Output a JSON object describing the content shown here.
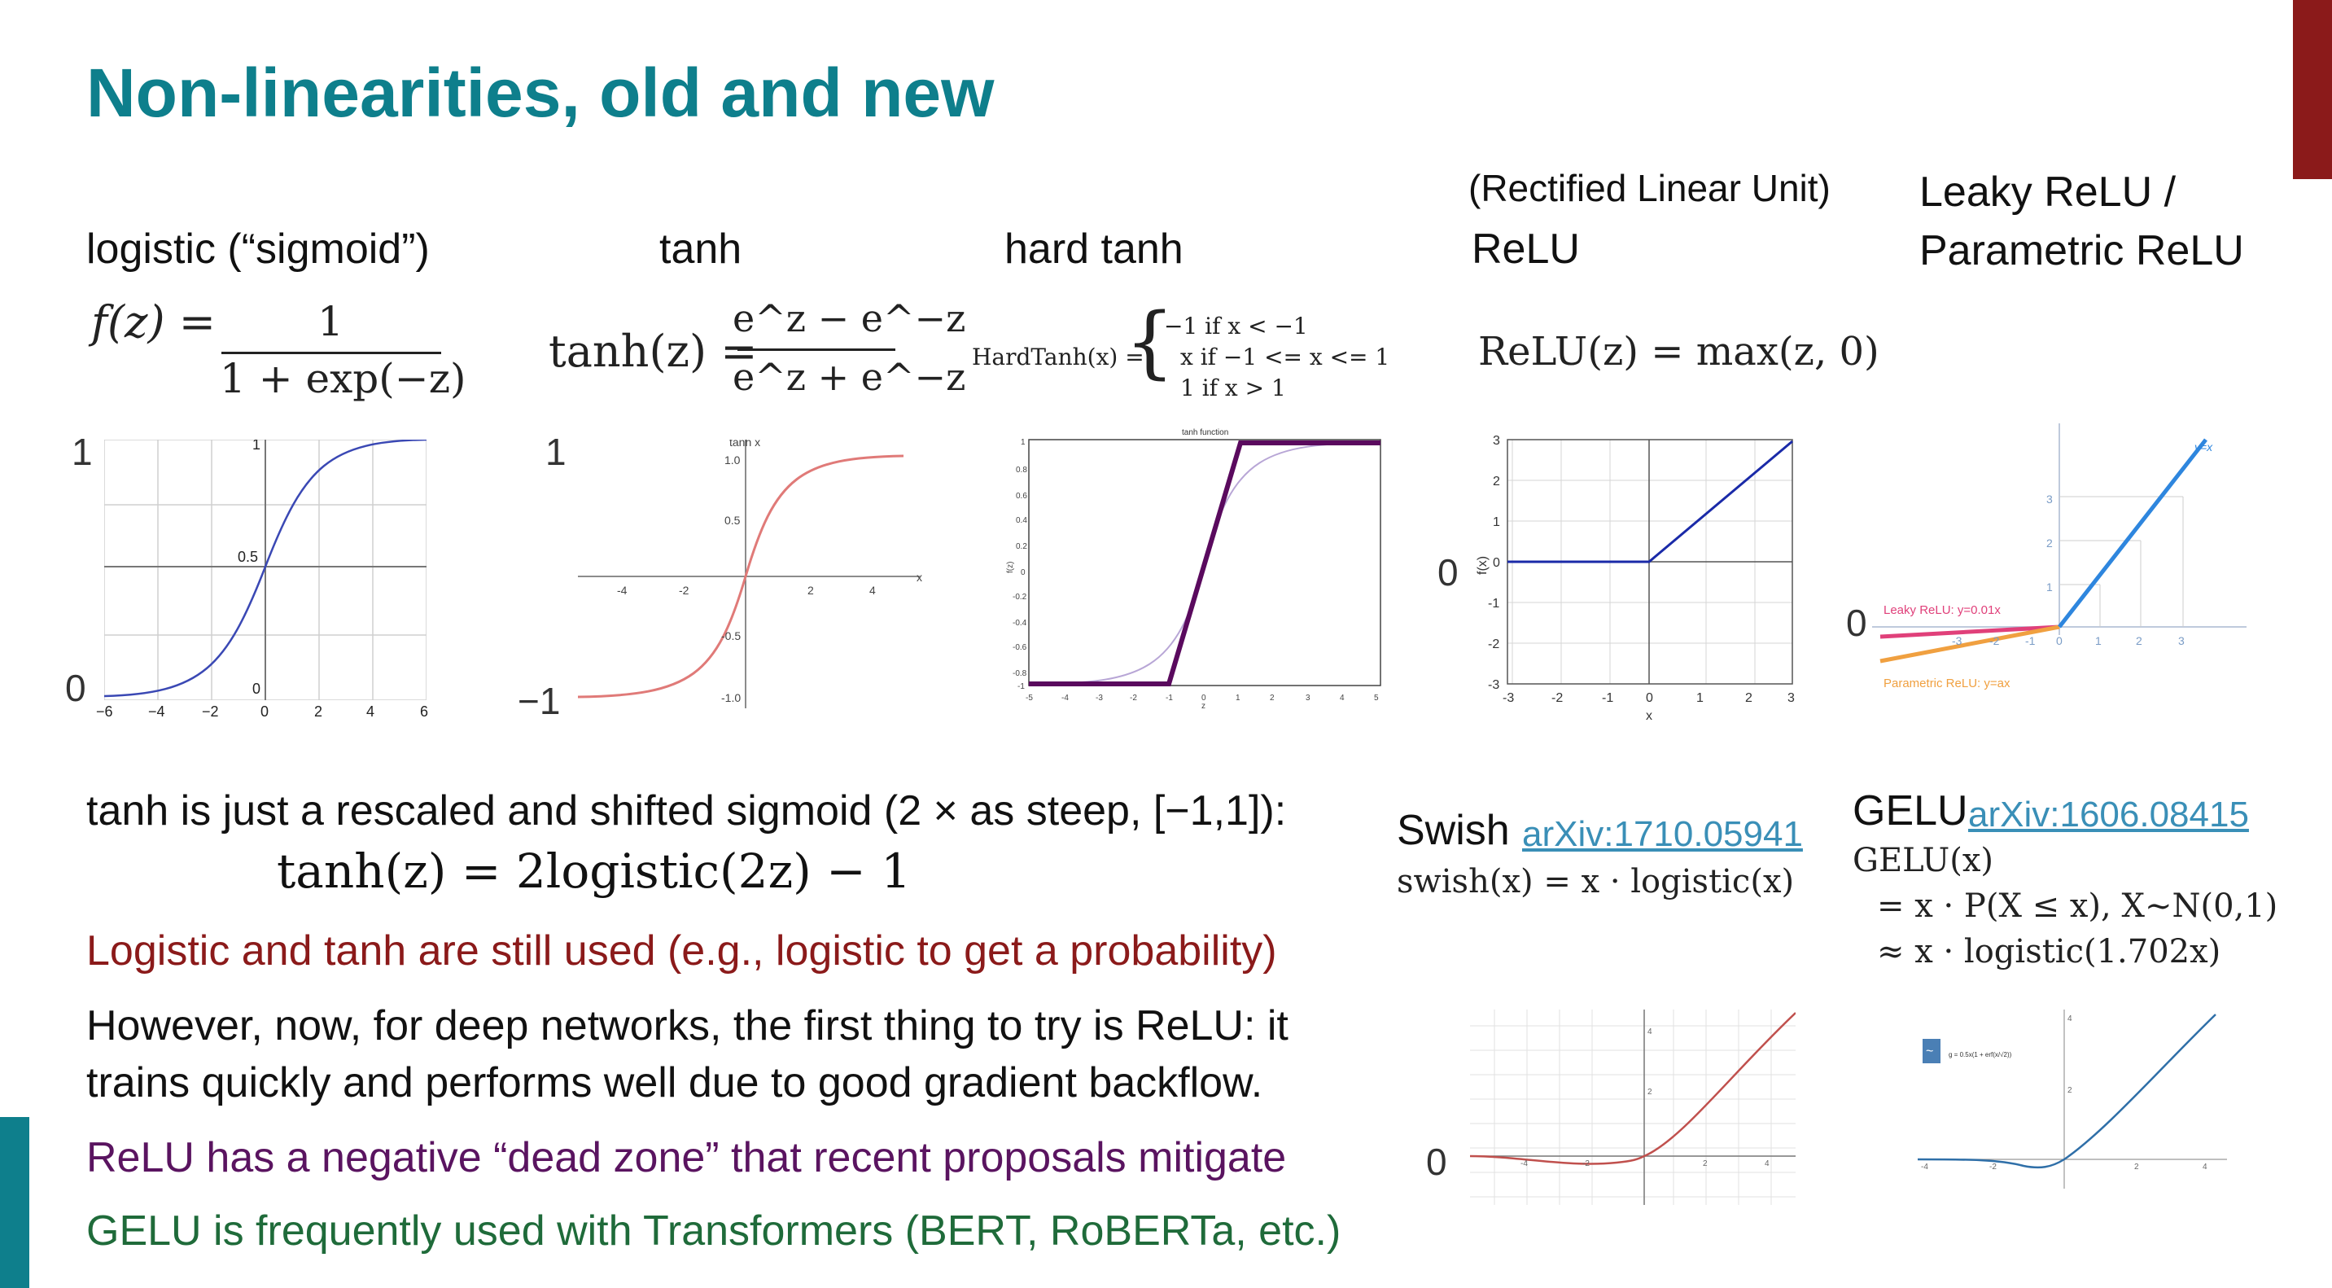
{
  "slide": {
    "title": "Non-linearities, old and new",
    "accent_color": "#0e7f8c",
    "side_bar_color": "#8b1a1a"
  },
  "functions": {
    "logistic": {
      "label": "logistic (“sigmoid”)",
      "formula_lhs": "f(z) =",
      "formula_num": "1",
      "formula_den": "1 + exp(−z)",
      "y_top": "1",
      "y_bottom": "0"
    },
    "tanh": {
      "label": "tanh",
      "formula_lhs": "tanh(z) =",
      "formula_num": "e^z − e^−z",
      "formula_den": "e^z + e^−z",
      "y_top": "1",
      "y_bottom": "−1"
    },
    "hardtanh": {
      "label": "hard tanh",
      "formula_lhs": "HardTanh(x) =",
      "case1": "−1   if x < −1",
      "case2": "x   if −1 <= x <= 1",
      "case3": "1   if x > 1",
      "plot_title": "tanh function"
    },
    "relu": {
      "label_top": "(Rectified Linear Unit)",
      "label": "ReLU",
      "formula": "ReLU(z) = max(z, 0)",
      "y_zero": "0"
    },
    "leaky": {
      "label_line1": "Leaky ReLU /",
      "label_line2": "Parametric ReLU",
      "y_zero": "0",
      "leaky_text": "Leaky ReLU: y=0.01x",
      "param_text": "Parametric ReLU: y=ax",
      "line_text": "y=x"
    },
    "swish": {
      "label": "Swish",
      "link": "arXiv:1710.05941",
      "formula": "swish(x) = x · logistic(x)",
      "y_zero": "0"
    },
    "gelu": {
      "label": "GELU",
      "link": "arXiv:1606.08415",
      "formula1": "GELU(x)",
      "formula2": "= x · P(X ≤ x), X∼N(0,1)",
      "formula3": "≈ x · logistic(1.702x)"
    }
  },
  "bullets": {
    "b1": "tanh is just a rescaled and shifted sigmoid (2 × as steep, [−1,1]):",
    "b1_formula": "tanh(z) = 2logistic(2z) − 1",
    "b2": "Logistic and tanh are still used (e.g., logistic to get a probability)",
    "b3_line1": "However, now, for deep networks, the first thing to try is ReLU: it",
    "b3_line2": "trains quickly and performs well due to good gradient backflow.",
    "b4": "ReLU has a negative “dead zone” that recent proposals mitigate",
    "b5": "GELU is frequently used with Transformers (BERT, RoBERTa, etc.)",
    "colors": {
      "b2": "#8b1a1a",
      "b4": "#5a1460",
      "b5": "#1f6b3a"
    }
  },
  "chart_data": [
    {
      "type": "line",
      "name_hint": "logistic",
      "x": [
        -6,
        6
      ],
      "ylim": [
        0,
        1
      ],
      "xticks": [
        "−6",
        "−4",
        "−2",
        "0",
        "2",
        "4",
        "6"
      ],
      "yticks": [
        "0",
        "0.5",
        "1"
      ]
    },
    {
      "type": "line",
      "name_hint": "tanh",
      "xticks": [
        "-4",
        "-2",
        "2",
        "4"
      ],
      "yticks": [
        "-1.0",
        "-0.5",
        "0.5",
        "1.0"
      ],
      "ylabel": "tanh x",
      "xlabel": "x"
    },
    {
      "type": "line",
      "name_hint": "hard tanh",
      "title": "tanh function",
      "xticks": [
        "-5",
        "-4",
        "-3",
        "-2",
        "-1",
        "0",
        "1",
        "2",
        "3",
        "4",
        "5"
      ],
      "yticks": [
        "-1",
        "-0.8",
        "-0.6",
        "-0.4",
        "-0.2",
        "0",
        "0.2",
        "0.4",
        "0.6",
        "0.8",
        "1"
      ],
      "ylabel": "f(z)",
      "xlabel": "z"
    },
    {
      "type": "line",
      "name_hint": "relu",
      "xticks": [
        "-3",
        "-2",
        "-1",
        "0",
        "1",
        "2",
        "3"
      ],
      "yticks": [
        "-3",
        "-2",
        "-1",
        "0",
        "1",
        "2",
        "3"
      ],
      "ylabel": "f(x)",
      "xlabel": "x"
    },
    {
      "type": "line",
      "name_hint": "leaky relu",
      "xticks": [
        "-3",
        "-2",
        "-1",
        "0",
        "1",
        "2",
        "3"
      ],
      "yticks": [
        "1",
        "2",
        "3"
      ]
    },
    {
      "type": "line",
      "name_hint": "swish",
      "yticks": [
        "2",
        "4"
      ],
      "xticks": [
        "-4",
        "-2",
        "2",
        "4"
      ]
    },
    {
      "type": "line",
      "name_hint": "gelu",
      "yticks": [
        "2",
        "4"
      ],
      "xticks": [
        "-4",
        "-2",
        "2",
        "4"
      ]
    }
  ]
}
